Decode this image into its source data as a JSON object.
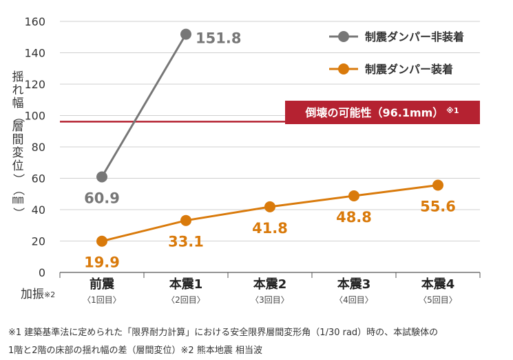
{
  "chart_data": {
    "type": "line",
    "ylabel": "揺れ幅（層間変位）（㎜）",
    "ylim": [
      0,
      160
    ],
    "yticks": [
      0,
      20,
      40,
      60,
      80,
      100,
      120,
      140,
      160
    ],
    "grid": true,
    "categories": [
      {
        "label": "前震",
        "sub": "〈1回目〉"
      },
      {
        "label": "本震1",
        "sub": "〈2回目〉"
      },
      {
        "label": "本震2",
        "sub": "〈3回目〉"
      },
      {
        "label": "本震3",
        "sub": "〈4回目〉"
      },
      {
        "label": "本震4",
        "sub": "〈5回目〉"
      }
    ],
    "x_corner_label": "加振",
    "x_corner_note": "※2",
    "series": [
      {
        "name": "制震ダンパー非装着",
        "color": "#777777",
        "values": [
          60.9,
          151.8,
          null,
          null,
          null
        ],
        "labels": [
          "60.9",
          "151.8"
        ]
      },
      {
        "name": "制震ダンパー装着",
        "color": "#d97a0b",
        "values": [
          19.9,
          33.1,
          41.8,
          48.8,
          55.6
        ],
        "labels": [
          "19.9",
          "33.1",
          "41.8",
          "48.8",
          "55.6"
        ]
      }
    ],
    "legend_position": "top-right",
    "reference_line": {
      "value": 96.1,
      "color": "#b52231",
      "label": "倒壊の可能性（96.1mm）",
      "note": "※1"
    }
  },
  "footnote": {
    "line1": "※1 建築基準法に定められた「限界耐力計算」における安全限界層間変形角（1/30 rad）時の、本試験体の",
    "line2": "1階と2階の床部の揺れ幅の差（層間変位）※2 熊本地震 相当波"
  }
}
